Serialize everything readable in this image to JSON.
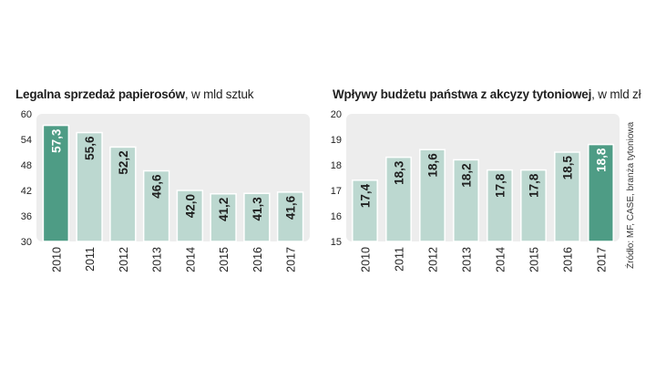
{
  "colors": {
    "bar_normal": "#bcd8d0",
    "bar_highlight": "#4e9c85",
    "bar_stroke": "#ffffff",
    "plot_bg": "#ededed",
    "text": "#1f1f1f"
  },
  "source_note": "Źródło: MF, CASE, branża tytoniowa",
  "chart_data": [
    {
      "type": "bar",
      "title": "Legalna sprzedaż papierosów",
      "title_unit": ", w mld sztuk",
      "categories": [
        "2010",
        "2011",
        "2012",
        "2013",
        "2014",
        "2015",
        "2016",
        "2017"
      ],
      "values": [
        57.3,
        55.6,
        52.2,
        46.6,
        42.0,
        41.2,
        41.3,
        41.6
      ],
      "value_labels": [
        "57,3",
        "55,6",
        "52,2",
        "46,6",
        "42,0",
        "41,2",
        "41,3",
        "41,6"
      ],
      "highlight_index": 0,
      "ylim": [
        30,
        60
      ],
      "yticks": [
        "30",
        "36",
        "42",
        "48",
        "54",
        "60"
      ],
      "xlabel": "",
      "ylabel": "",
      "grid": false
    },
    {
      "type": "bar",
      "title": "Wpływy budżetu państwa z akcyzy tytoniowej",
      "title_unit": ", w mld zł",
      "categories": [
        "2010",
        "2011",
        "2012",
        "2013",
        "2014",
        "2015",
        "2016",
        "2017"
      ],
      "values": [
        17.4,
        18.3,
        18.6,
        18.2,
        17.8,
        17.8,
        18.5,
        18.8
      ],
      "value_labels": [
        "17,4",
        "18,3",
        "18,6",
        "18,2",
        "17,8",
        "17,8",
        "18,5",
        "18,8"
      ],
      "highlight_index": 7,
      "ylim": [
        15,
        20
      ],
      "yticks": [
        "15",
        "16",
        "17",
        "18",
        "19",
        "20"
      ],
      "xlabel": "",
      "ylabel": "",
      "grid": false
    }
  ]
}
